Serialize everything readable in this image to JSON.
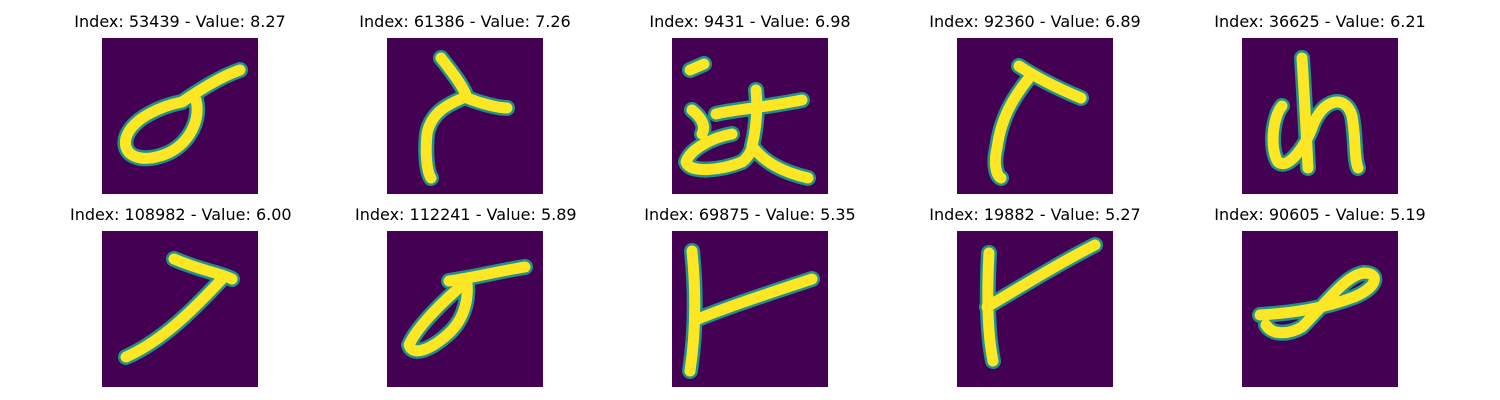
{
  "colors": {
    "background": "#440154",
    "stroke": "#fde725",
    "edge": "#21918c"
  },
  "panels": [
    {
      "title": "Index: 53439 - Value: 8.27",
      "glyph": "loop-stroke"
    },
    {
      "title": "Index: 61386 - Value: 7.26",
      "glyph": "hook-stroke"
    },
    {
      "title": "Index: 9431 - Value: 6.98",
      "glyph": "kanji-stroke"
    },
    {
      "title": "Index: 92360 - Value: 6.89",
      "glyph": "bent-stroke"
    },
    {
      "title": "Index: 36625 - Value: 6.21",
      "glyph": "nu-stroke"
    },
    {
      "title": "Index: 108982 - Value: 6.00",
      "glyph": "slash-stroke"
    },
    {
      "title": "Index: 112241 - Value: 5.89",
      "glyph": "loop-tail-stroke"
    },
    {
      "title": "Index: 69875 - Value: 5.35",
      "glyph": "t-stroke"
    },
    {
      "title": "Index: 19882 - Value: 5.27",
      "glyph": "y-stroke"
    },
    {
      "title": "Index: 90605 - Value: 5.19",
      "glyph": "blob-stroke"
    }
  ]
}
